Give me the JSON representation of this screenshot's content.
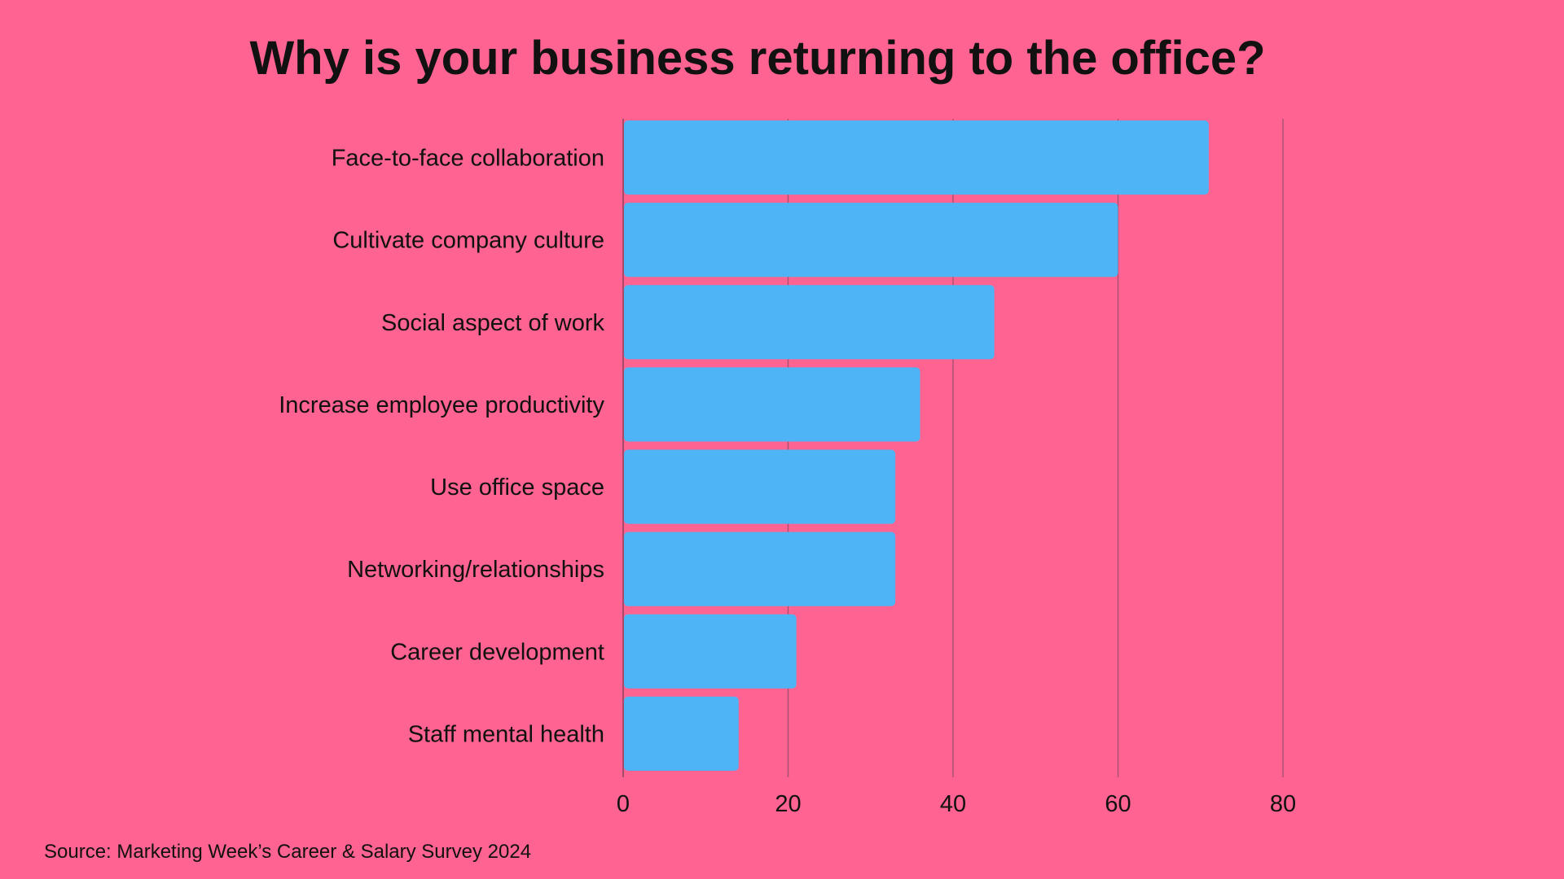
{
  "colors": {
    "background": "#FF6391",
    "bar": "#4FB4F5",
    "grid": "#A24E70",
    "text": "#111111"
  },
  "chart_data": {
    "type": "bar",
    "orientation": "horizontal",
    "title": "Why is your business returning to the office?",
    "categories": [
      "Face-to-face collaboration",
      "Cultivate company culture",
      "Social aspect of work",
      "Increase employee productivity",
      "Use office space",
      "Networking/relationships",
      "Career development",
      "Staff mental health"
    ],
    "values": [
      71,
      60,
      45,
      36,
      33,
      33,
      21,
      14
    ],
    "xlim": [
      0,
      80
    ],
    "xticks": [
      0,
      20,
      40,
      60,
      80
    ],
    "xlabel": "",
    "ylabel": "",
    "grid": "vertical"
  },
  "source": "Source: Marketing Week’s Career & Salary Survey 2024"
}
